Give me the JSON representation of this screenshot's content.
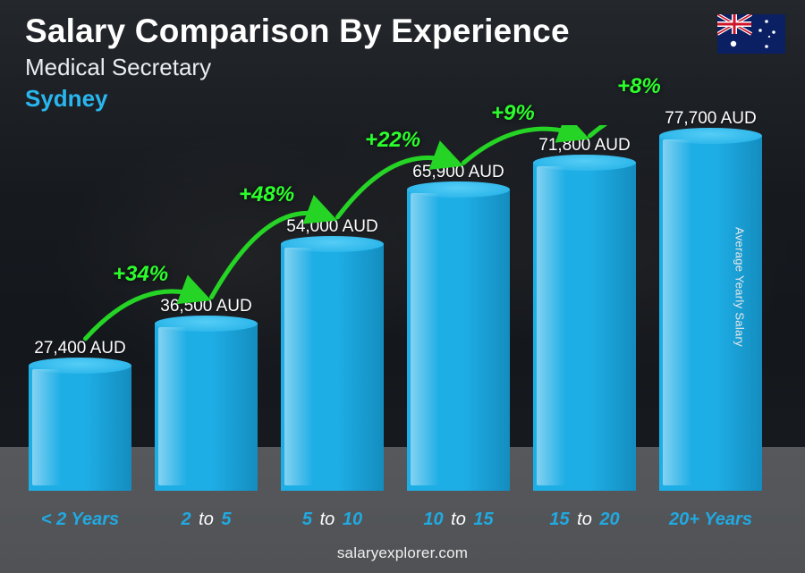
{
  "header": {
    "title": "Salary Comparison By Experience",
    "role": "Medical Secretary",
    "city": "Sydney",
    "city_color": "#29b6ef"
  },
  "y_axis_label": "Average Yearly Salary",
  "footer": "salaryexplorer.com",
  "flag": {
    "name": "australia-flag-icon",
    "bg": "#0b1f63",
    "red": "#cf142b",
    "white": "#ffffff"
  },
  "chart": {
    "type": "bar",
    "y_max": 80000,
    "bar_fill": "#1eaee6",
    "bar_fill_dark": "#148dbf",
    "bar_top": "#55cdf6",
    "label_color": "#21a9e1",
    "pct_color": "#2bff2b",
    "arrow_stroke": "#25d425",
    "bars": [
      {
        "label_pre": "< 2",
        "label_post": "Years",
        "value": 27400,
        "value_text": "27,400 AUD"
      },
      {
        "label_pre": "2",
        "label_mid": "to",
        "label_post": "5",
        "value": 36500,
        "value_text": "36,500 AUD",
        "pct": "+34%"
      },
      {
        "label_pre": "5",
        "label_mid": "to",
        "label_post": "10",
        "value": 54000,
        "value_text": "54,000 AUD",
        "pct": "+48%"
      },
      {
        "label_pre": "10",
        "label_mid": "to",
        "label_post": "15",
        "value": 65900,
        "value_text": "65,900 AUD",
        "pct": "+22%"
      },
      {
        "label_pre": "15",
        "label_mid": "to",
        "label_post": "20",
        "value": 71800,
        "value_text": "71,800 AUD",
        "pct": "+9%"
      },
      {
        "label_pre": "20+",
        "label_post": "Years",
        "value": 77700,
        "value_text": "77,700 AUD",
        "pct": "+8%"
      }
    ]
  }
}
